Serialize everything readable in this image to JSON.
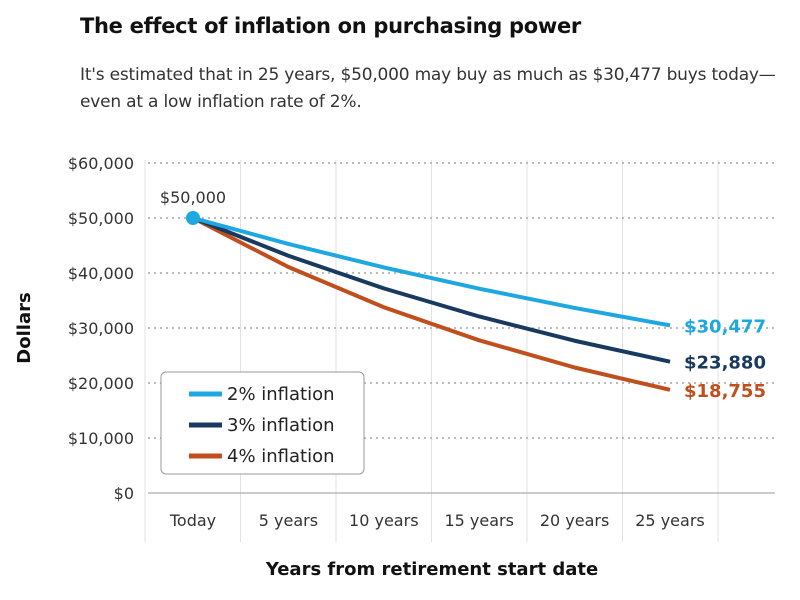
{
  "title": "The effect of inflation on purchasing power",
  "subtitle": "It's estimated that in 25 years, $50,000 may buy as much as $30,477 buys today—even at a low inflation rate of 2%.",
  "chart_data": {
    "type": "line",
    "xlabel": "Years from retirement start date",
    "ylabel": "Dollars",
    "categories": [
      "Today",
      "5 years",
      "10 years",
      "15 years",
      "20 years",
      "25 years"
    ],
    "ylim": [
      0,
      60000
    ],
    "yticks": [
      "$0",
      "$10,000",
      "$20,000",
      "$30,000",
      "$40,000",
      "$50,000",
      "$60,000"
    ],
    "grid": true,
    "legend_position": "bottom-left",
    "start_annotation": "$50,000",
    "series": [
      {
        "name": "2% inflation",
        "color": "#1ea7e1",
        "values": [
          50000,
          45287,
          41017,
          37149,
          33649,
          30477
        ],
        "end_label": "$30,477"
      },
      {
        "name": "3% inflation",
        "color": "#183a5e",
        "values": [
          50000,
          43130,
          37205,
          32093,
          27684,
          23880
        ],
        "end_label": "$23,880"
      },
      {
        "name": "4% inflation",
        "color": "#c14f1e",
        "values": [
          50000,
          41096,
          33778,
          27763,
          22819,
          18755
        ],
        "end_label": "$18,755"
      }
    ]
  }
}
